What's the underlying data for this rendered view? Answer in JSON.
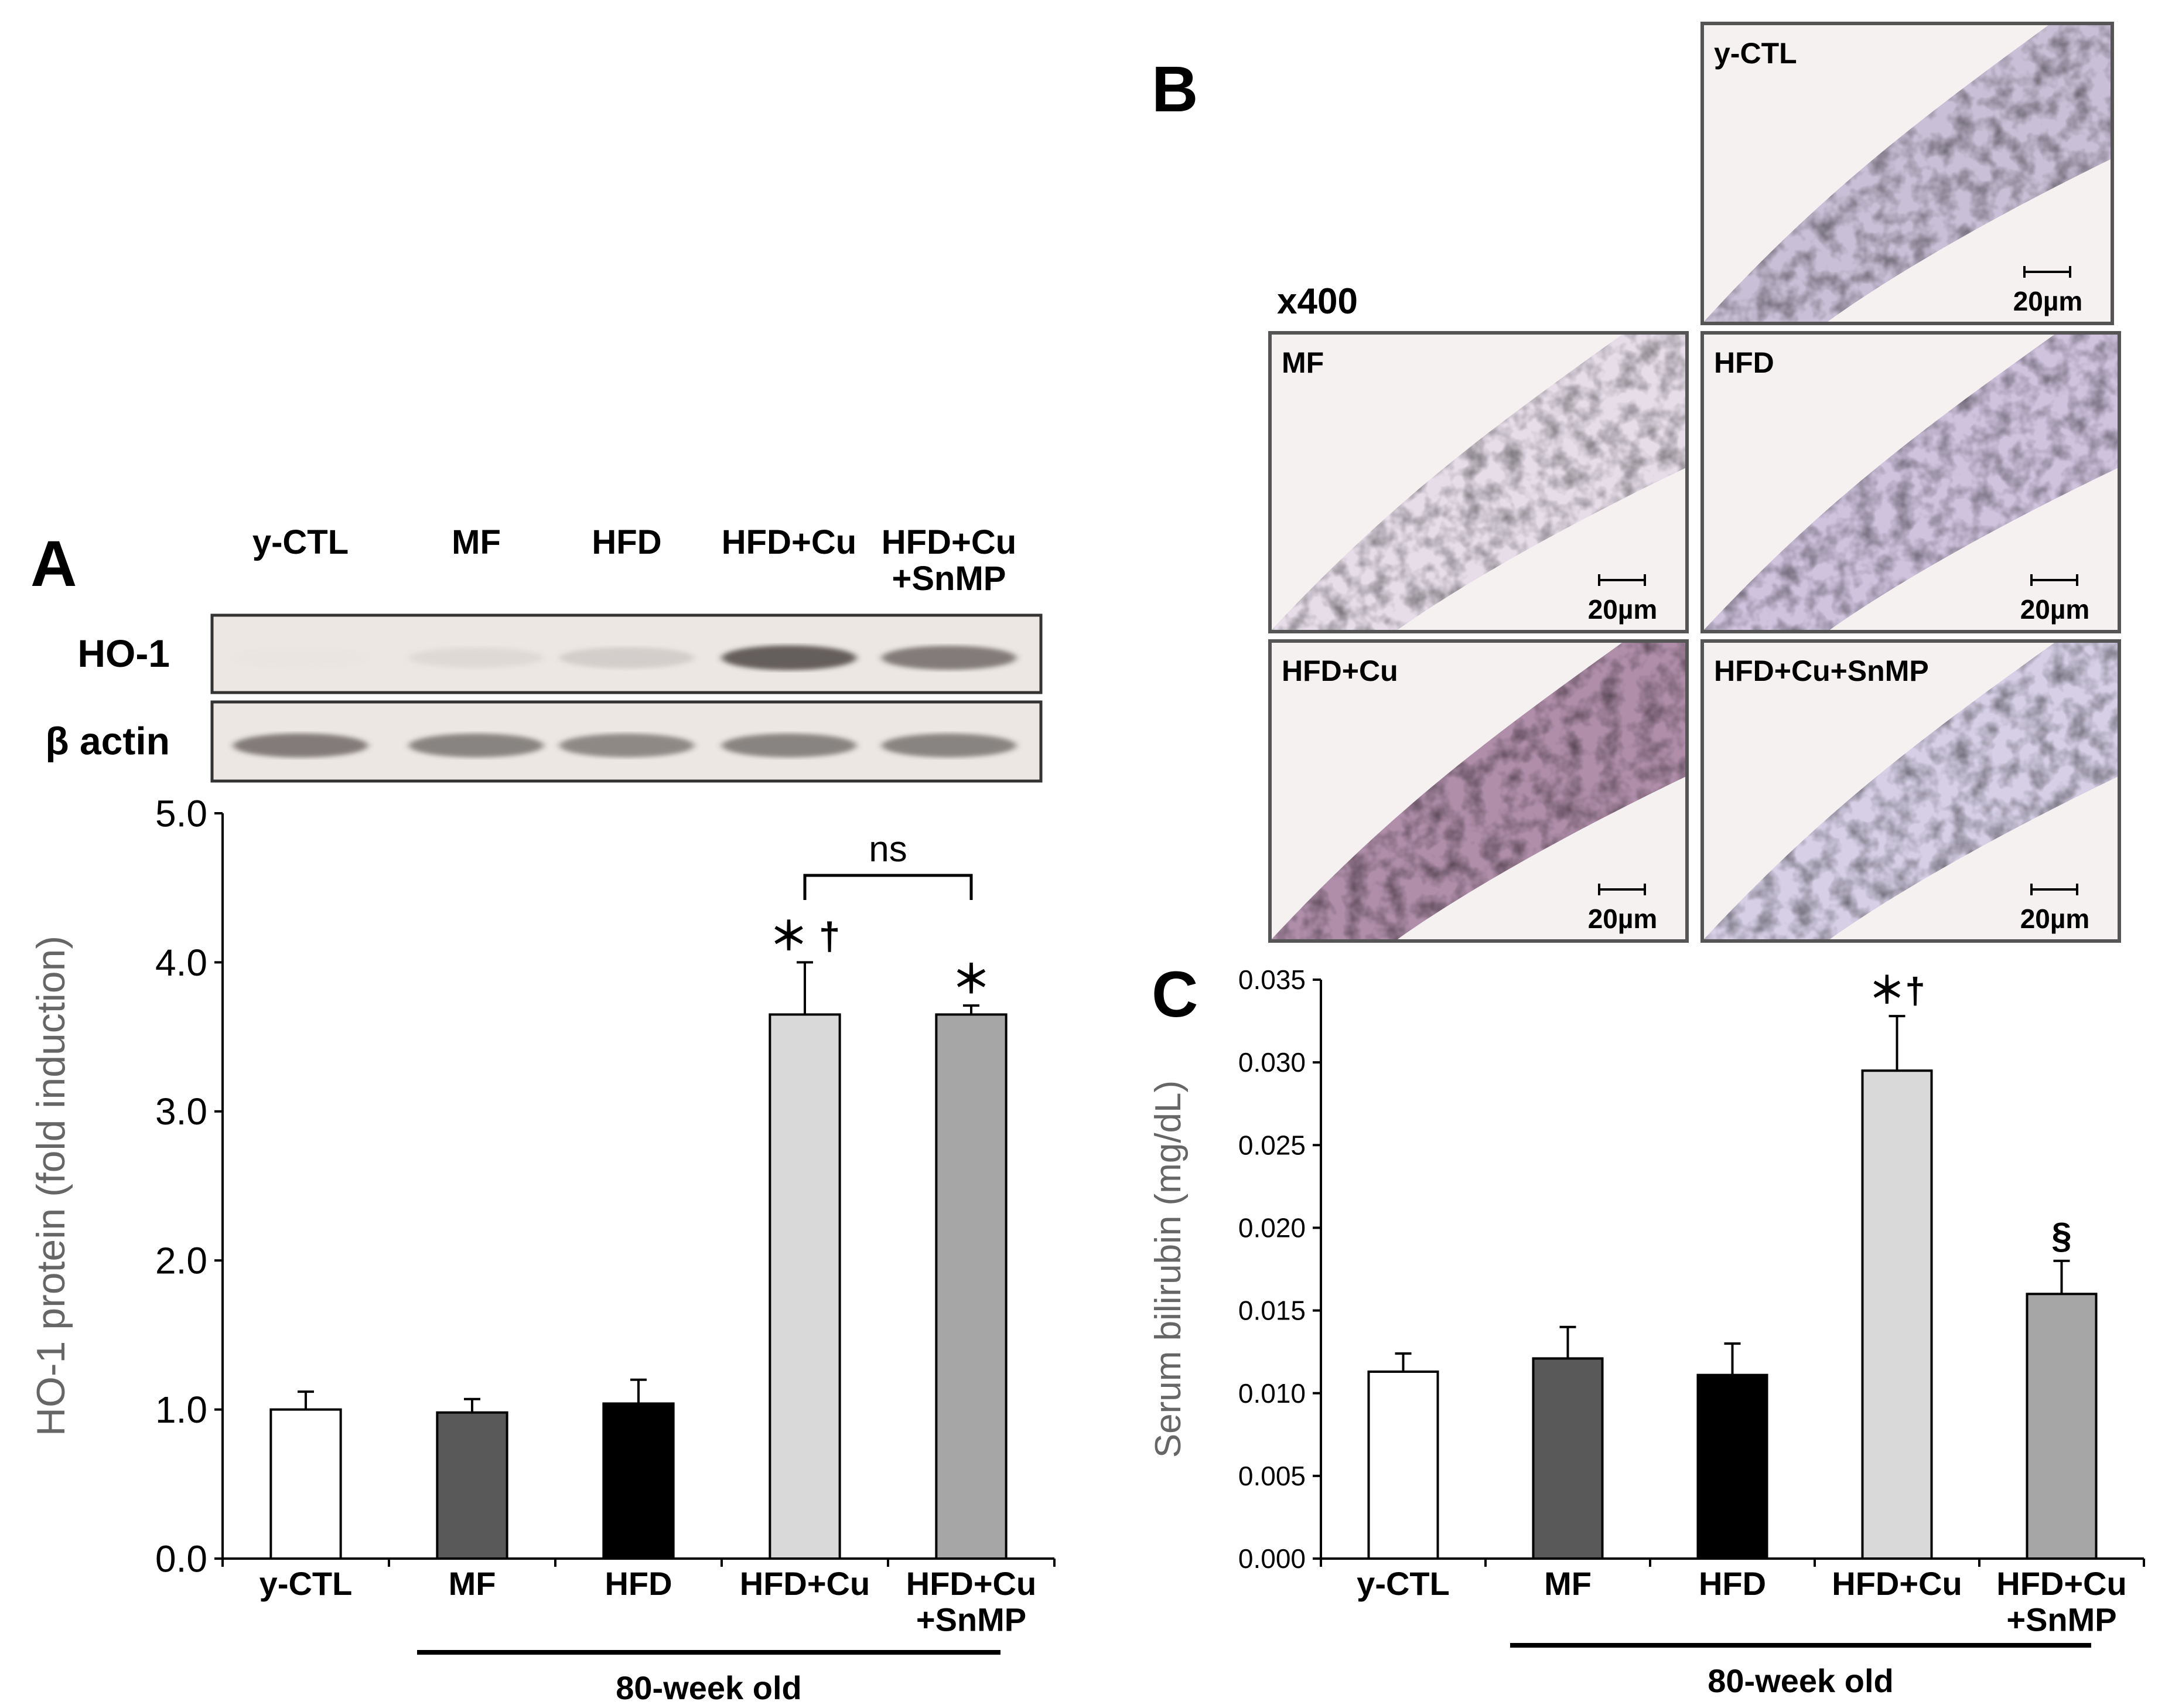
{
  "panel_labels": {
    "a": "A",
    "b": "B",
    "c": "C"
  },
  "western_blot": {
    "lanes": [
      "y-CTL",
      "MF",
      "HFD",
      "HFD+Cu",
      "HFD+Cu\n+SnMP"
    ],
    "rows": [
      {
        "label": "HO-1",
        "intensity": [
          0.03,
          0.25,
          0.35,
          0.85,
          0.75
        ]
      },
      {
        "label": "β actin",
        "intensity": [
          0.75,
          0.72,
          0.7,
          0.72,
          0.72
        ]
      }
    ]
  },
  "histology": {
    "magnification": "x400",
    "scale_bar": "20µm",
    "panels": [
      {
        "label": "y-CTL",
        "stain": "mixed",
        "colors": [
          "#c9bfd6",
          "#8a6e8c"
        ]
      },
      {
        "label": "MF",
        "stain": "light",
        "colors": [
          "#e6dde8",
          "#d6b090"
        ]
      },
      {
        "label": "HFD",
        "stain": "orange",
        "colors": [
          "#cfc3de",
          "#d9956a"
        ]
      },
      {
        "label": "HFD+Cu",
        "stain": "dense",
        "colors": [
          "#b08eaa",
          "#a0586a"
        ]
      },
      {
        "label": "HFD+Cu+SnMP",
        "stain": "pale",
        "colors": [
          "#d6cfe6",
          "#c08a8a"
        ]
      }
    ]
  },
  "chart_data": [
    {
      "type": "bar",
      "panel": "A",
      "categories": [
        "y-CTL",
        "MF",
        "HFD",
        "HFD+Cu",
        "HFD+Cu\n+SnMP"
      ],
      "values": [
        1.0,
        0.98,
        1.04,
        3.65,
        3.65
      ],
      "errors": [
        0.12,
        0.09,
        0.16,
        0.35,
        0.06
      ],
      "colors": [
        "#ffffff",
        "#595959",
        "#000000",
        "#d9d9d9",
        "#a6a6a6"
      ],
      "annotations": [
        "",
        "",
        "",
        "＊ †",
        "＊"
      ],
      "bracket": {
        "from": 3,
        "to": 4,
        "label": "ns"
      },
      "ylabel": "HO-1 protein (fold induction)",
      "ylim": [
        0,
        5
      ],
      "yticks": [
        "0.0",
        "1.0",
        "2.0",
        "3.0",
        "4.0",
        "5.0"
      ],
      "group_label": "80-week old"
    },
    {
      "type": "bar",
      "panel": "C",
      "categories": [
        "y-CTL",
        "MF",
        "HFD",
        "HFD+Cu",
        "HFD+Cu\n+SnMP"
      ],
      "values": [
        0.0113,
        0.0121,
        0.0111,
        0.0295,
        0.016
      ],
      "errors": [
        0.0011,
        0.0019,
        0.0019,
        0.0033,
        0.002
      ],
      "colors": [
        "#ffffff",
        "#595959",
        "#000000",
        "#d9d9d9",
        "#a6a6a6"
      ],
      "annotations": [
        "",
        "",
        "",
        "＊†",
        "§"
      ],
      "ylabel": "Serum bilirubin (mg/dL)",
      "ylim": [
        0,
        0.035
      ],
      "yticks": [
        "0.000",
        "0.005",
        "0.010",
        "0.015",
        "0.020",
        "0.025",
        "0.030",
        "0.035"
      ],
      "group_label": "80-week old"
    }
  ]
}
